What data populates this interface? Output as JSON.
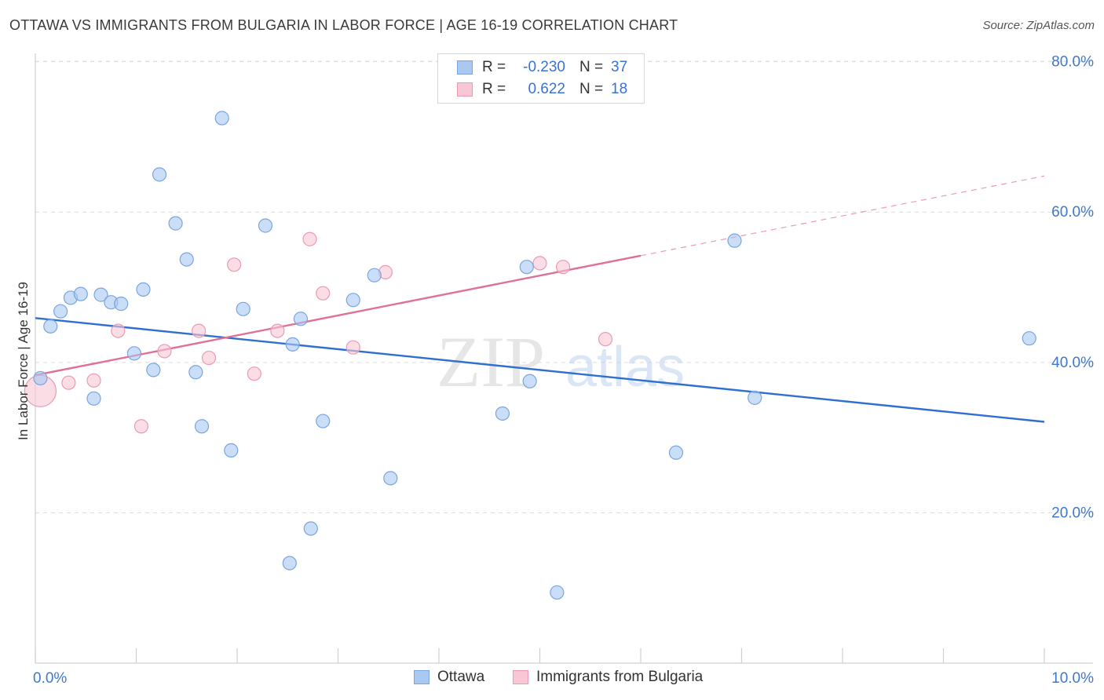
{
  "header": {
    "title": "OTTAWA VS IMMIGRANTS FROM BULGARIA IN LABOR FORCE | AGE 16-19 CORRELATION CHART",
    "source": "Source: ZipAtlas.com"
  },
  "watermark": {
    "zip": "ZIP",
    "atlas": "atlas"
  },
  "stats": [
    {
      "r_label": "R =",
      "r_value": "-0.230",
      "n_label": "N =",
      "n_value": "37",
      "color": "#a9c8f2",
      "border": "#7aa5e0"
    },
    {
      "r_label": "R =",
      "r_value": " 0.622",
      "n_label": "N =",
      "n_value": "18",
      "color": "#f8c6d4",
      "border": "#eb9ab2"
    }
  ],
  "legend": [
    {
      "label": "Ottawa",
      "color": "#a9c8f2",
      "border": "#7aa5e0"
    },
    {
      "label": "Immigrants from Bulgaria",
      "color": "#f8c6d4",
      "border": "#eb9ab2"
    }
  ],
  "chart_data": {
    "type": "scatter",
    "title": "OTTAWA VS IMMIGRANTS FROM BULGARIA IN LABOR FORCE | AGE 16-19 CORRELATION CHART",
    "xlabel": "",
    "ylabel": "In Labor Force | Age 16-19",
    "xlim": [
      0,
      10
    ],
    "ylim": [
      0,
      82
    ],
    "x_tick_labels": [
      {
        "value": 0,
        "label": "0.0%"
      },
      {
        "value": 10,
        "label": "10.0%"
      }
    ],
    "y_tick_labels": [
      {
        "value": 20,
        "label": "20.0%"
      },
      {
        "value": 40,
        "label": "40.0%"
      },
      {
        "value": 60,
        "label": "60.0%"
      },
      {
        "value": 80,
        "label": "80.0%"
      }
    ],
    "series": [
      {
        "name": "Ottawa",
        "color": "#a9c8f2",
        "stroke": "#7aa5e0",
        "line_color": "#2f6fd0",
        "trend": {
          "x": [
            0,
            10
          ],
          "y": [
            45.9,
            32.1
          ]
        },
        "points": [
          [
            0.05,
            37.9
          ],
          [
            0.15,
            44.8
          ],
          [
            0.25,
            46.8
          ],
          [
            0.35,
            48.6
          ],
          [
            0.45,
            49.1
          ],
          [
            0.58,
            35.2
          ],
          [
            0.65,
            49.0
          ],
          [
            0.75,
            48.0
          ],
          [
            0.85,
            47.8
          ],
          [
            0.98,
            41.2
          ],
          [
            1.07,
            49.7
          ],
          [
            1.17,
            39.0
          ],
          [
            1.23,
            65.0
          ],
          [
            1.39,
            58.5
          ],
          [
            1.5,
            53.7
          ],
          [
            1.59,
            38.7
          ],
          [
            1.65,
            31.5
          ],
          [
            1.85,
            72.5
          ],
          [
            1.94,
            28.3
          ],
          [
            2.06,
            47.1
          ],
          [
            2.28,
            58.2
          ],
          [
            2.52,
            13.3
          ],
          [
            2.55,
            42.4
          ],
          [
            2.63,
            45.8
          ],
          [
            2.73,
            17.9
          ],
          [
            2.85,
            32.2
          ],
          [
            3.15,
            48.3
          ],
          [
            3.36,
            51.6
          ],
          [
            3.52,
            24.6
          ],
          [
            4.63,
            33.2
          ],
          [
            4.87,
            52.7
          ],
          [
            4.9,
            37.5
          ],
          [
            5.17,
            9.4
          ],
          [
            6.35,
            28.0
          ],
          [
            6.93,
            56.2
          ],
          [
            7.13,
            35.3
          ],
          [
            9.85,
            43.2
          ]
        ]
      },
      {
        "name": "Immigrants from Bulgaria",
        "color": "#f8c6d4",
        "stroke": "#eb9ab2",
        "line_color": "#e07096",
        "trend": {
          "x": [
            0,
            6.0
          ],
          "y": [
            38.3,
            54.2
          ]
        },
        "trend_extension": {
          "x": [
            6.0,
            10
          ],
          "y": [
            54.2,
            64.8
          ]
        },
        "points": [
          [
            0.05,
            36.2,
            "large"
          ],
          [
            0.33,
            37.3
          ],
          [
            0.58,
            37.6
          ],
          [
            0.82,
            44.2
          ],
          [
            1.05,
            31.5
          ],
          [
            1.28,
            41.5
          ],
          [
            1.62,
            44.2
          ],
          [
            1.72,
            40.6
          ],
          [
            1.97,
            53.0
          ],
          [
            2.17,
            38.5
          ],
          [
            2.4,
            44.2
          ],
          [
            2.72,
            56.4
          ],
          [
            2.85,
            49.2
          ],
          [
            3.15,
            42.0
          ],
          [
            3.47,
            52.0
          ],
          [
            5.0,
            53.2
          ],
          [
            5.23,
            52.7
          ],
          [
            5.65,
            43.1
          ]
        ]
      }
    ]
  }
}
